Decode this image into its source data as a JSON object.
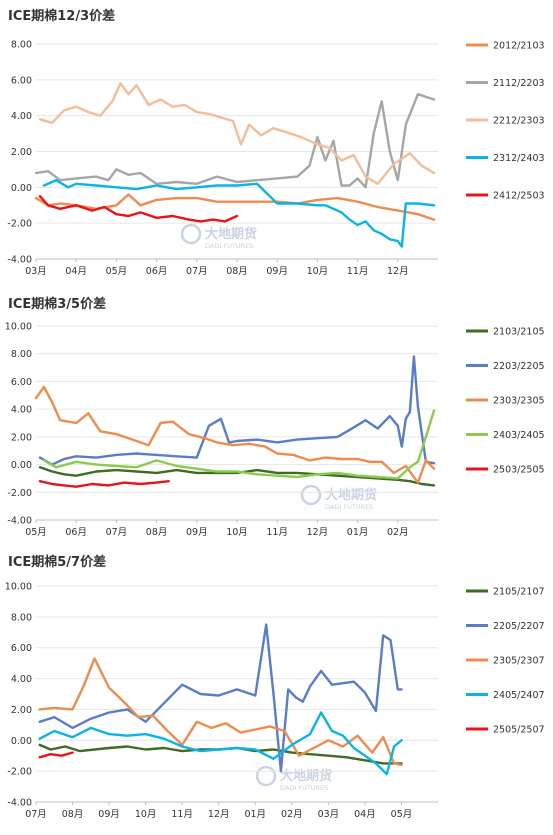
{
  "colors": {
    "light_orange": "#F2BE9A",
    "orange": "#ED8C4E",
    "gray": "#A6A6A6",
    "cyan": "#0AB4E6",
    "red": "#E8141B",
    "blue": "#5B7DC8",
    "dark_green": "#3F6B24",
    "light_green": "#8DCB50",
    "grid": "#E6E6E6",
    "axis": "#BFBFBF",
    "text": "#333333",
    "watermark": "#C9D3E3"
  },
  "watermark": {
    "cn": "大地期货",
    "en": "DADI FUTURES"
  },
  "chart_data": [
    {
      "type": "line",
      "title": "ICE期棉12/3价差",
      "ylim": [
        -4,
        8
      ],
      "yticks": [
        "8.00",
        "6.00",
        "4.00",
        "2.00",
        "0.00",
        "-2.00",
        "-4.00"
      ],
      "categories": [
        "03月",
        "04月",
        "05月",
        "06月",
        "07月",
        "08月",
        "09月",
        "10月",
        "11月",
        "12月"
      ],
      "legend_position": "right",
      "series": [
        {
          "name": "2012/2103",
          "color_key": "orange",
          "x": [
            0,
            0.3,
            0.6,
            1,
            1.5,
            2,
            2.3,
            2.6,
            3,
            3.5,
            4,
            4.5,
            5,
            5.5,
            6,
            6.5,
            7,
            7.5,
            8,
            8.5,
            9,
            9.5,
            9.9
          ],
          "y": [
            -0.6,
            -1.0,
            -0.9,
            -1.0,
            -1.2,
            -1.0,
            -0.4,
            -1.0,
            -0.7,
            -0.6,
            -0.6,
            -0.8,
            -0.8,
            -0.8,
            -0.8,
            -0.9,
            -0.7,
            -0.6,
            -0.8,
            -1.1,
            -1.3,
            -1.5,
            -1.8
          ]
        },
        {
          "name": "2112/2203",
          "color_key": "gray",
          "x": [
            0,
            0.3,
            0.6,
            1,
            1.5,
            1.8,
            2,
            2.3,
            2.6,
            3,
            3.5,
            4,
            4.5,
            5,
            5.5,
            6,
            6.5,
            6.8,
            7,
            7.2,
            7.4,
            7.6,
            7.8,
            8,
            8.2,
            8.4,
            8.6,
            8.8,
            9.0,
            9.2,
            9.5,
            9.9
          ],
          "y": [
            0.8,
            0.9,
            0.4,
            0.5,
            0.6,
            0.4,
            1.0,
            0.7,
            0.8,
            0.2,
            0.3,
            0.2,
            0.6,
            0.3,
            0.4,
            0.5,
            0.6,
            1.2,
            2.8,
            1.5,
            2.6,
            0.1,
            0.1,
            0.5,
            0.0,
            3.0,
            4.8,
            2.0,
            0.4,
            3.5,
            5.2,
            4.9
          ]
        },
        {
          "name": "2212/2303",
          "color_key": "light_orange",
          "x": [
            0.1,
            0.4,
            0.7,
            1,
            1.3,
            1.6,
            1.9,
            2.1,
            2.3,
            2.5,
            2.8,
            3.1,
            3.4,
            3.7,
            4,
            4.3,
            4.6,
            4.9,
            5.1,
            5.3,
            5.6,
            5.9,
            6.2,
            6.6,
            7,
            7.3,
            7.6,
            7.9,
            8.2,
            8.5,
            8.9,
            9.3,
            9.6,
            9.9
          ],
          "y": [
            3.8,
            3.6,
            4.3,
            4.5,
            4.2,
            4.0,
            4.8,
            5.8,
            5.2,
            5.7,
            4.6,
            4.9,
            4.5,
            4.6,
            4.2,
            4.1,
            3.9,
            3.7,
            2.4,
            3.5,
            2.9,
            3.3,
            3.1,
            2.8,
            2.4,
            2.2,
            1.5,
            1.8,
            0.6,
            0.2,
            1.3,
            1.9,
            1.2,
            0.8
          ]
        },
        {
          "name": "2312/2403",
          "color_key": "cyan",
          "x": [
            0.2,
            0.5,
            0.8,
            1,
            1.5,
            2,
            2.5,
            3,
            3.5,
            4,
            4.5,
            5,
            5.5,
            6,
            6.5,
            7,
            7.2,
            7.4,
            7.6,
            7.8,
            8.0,
            8.2,
            8.4,
            8.6,
            8.8,
            9.0,
            9.1,
            9.2,
            9.5,
            9.9
          ],
          "y": [
            0.1,
            0.4,
            0.0,
            0.2,
            0.1,
            0.0,
            -0.1,
            0.1,
            -0.1,
            0.0,
            0.1,
            0.1,
            0.2,
            -0.9,
            -0.9,
            -1.0,
            -1.0,
            -1.2,
            -1.4,
            -1.8,
            -2.1,
            -1.9,
            -2.4,
            -2.6,
            -2.9,
            -3.0,
            -3.3,
            -0.9,
            -0.9,
            -1.0
          ]
        },
        {
          "name": "2412/2503",
          "color_key": "red",
          "x": [
            0.1,
            0.3,
            0.6,
            1,
            1.4,
            1.7,
            2,
            2.3,
            2.6,
            3,
            3.4,
            3.8,
            4.1,
            4.4,
            4.7,
            5.0
          ],
          "y": [
            -0.5,
            -1.0,
            -1.2,
            -1.0,
            -1.3,
            -1.1,
            -1.5,
            -1.6,
            -1.4,
            -1.7,
            -1.6,
            -1.8,
            -1.9,
            -1.8,
            -1.9,
            -1.6
          ]
        }
      ]
    },
    {
      "type": "line",
      "title": "ICE期棉3/5价差",
      "ylim": [
        -4,
        10
      ],
      "yticks": [
        "10.00",
        "8.00",
        "6.00",
        "4.00",
        "2.00",
        "0.00",
        "-2.00",
        "-4.00"
      ],
      "categories": [
        "05月",
        "06月",
        "07月",
        "08月",
        "09月",
        "10月",
        "11月",
        "12月",
        "01月",
        "02月"
      ],
      "legend_position": "right",
      "series": [
        {
          "name": "2103/2105",
          "color_key": "dark_green",
          "x": [
            0.1,
            0.4,
            0.7,
            1,
            1.5,
            2,
            2.5,
            3,
            3.5,
            4,
            4.5,
            5,
            5.5,
            6,
            6.5,
            7,
            7.5,
            8,
            8.5,
            9,
            9.3,
            9.6,
            9.9
          ],
          "y": [
            -0.2,
            -0.5,
            -0.7,
            -0.8,
            -0.5,
            -0.4,
            -0.5,
            -0.6,
            -0.4,
            -0.6,
            -0.6,
            -0.6,
            -0.4,
            -0.6,
            -0.6,
            -0.7,
            -0.8,
            -0.9,
            -1.0,
            -1.1,
            -1.2,
            -1.4,
            -1.5
          ]
        },
        {
          "name": "2203/2205",
          "color_key": "blue",
          "x": [
            0.1,
            0.4,
            0.7,
            1,
            1.5,
            2,
            2.5,
            3,
            3.5,
            4,
            4.3,
            4.6,
            4.8,
            5.0,
            5.5,
            6,
            6.5,
            7,
            7.5,
            7.8,
            8.2,
            8.5,
            8.8,
            9.0,
            9.1,
            9.2,
            9.3,
            9.4,
            9.5,
            9.7,
            9.9
          ],
          "y": [
            0.5,
            0.0,
            0.4,
            0.6,
            0.5,
            0.7,
            0.8,
            0.7,
            0.6,
            0.5,
            2.8,
            3.3,
            1.6,
            1.7,
            1.8,
            1.6,
            1.8,
            1.9,
            2.0,
            2.5,
            3.2,
            2.6,
            3.5,
            2.8,
            1.3,
            3.3,
            3.8,
            7.8,
            4.2,
            0.2,
            0.1
          ]
        },
        {
          "name": "2303/2305",
          "color_key": "orange",
          "x": [
            0.0,
            0.2,
            0.4,
            0.6,
            1,
            1.3,
            1.6,
            2,
            2.4,
            2.8,
            3.1,
            3.4,
            3.8,
            4.2,
            4.5,
            4.9,
            5.3,
            5.7,
            6.0,
            6.4,
            6.8,
            7.2,
            7.6,
            8.0,
            8.3,
            8.6,
            8.9,
            9.2,
            9.5,
            9.7,
            9.9
          ],
          "y": [
            4.8,
            5.6,
            4.5,
            3.2,
            3.0,
            3.7,
            2.4,
            2.2,
            1.8,
            1.4,
            3.0,
            3.1,
            2.2,
            1.9,
            1.6,
            1.4,
            1.5,
            1.3,
            0.8,
            0.7,
            0.3,
            0.5,
            0.4,
            0.4,
            0.2,
            0.2,
            -0.6,
            -0.1,
            -1.3,
            0.3,
            -0.3
          ]
        },
        {
          "name": "2403/2405",
          "color_key": "light_green",
          "x": [
            0.2,
            0.5,
            1,
            1.5,
            2,
            2.5,
            3,
            3.5,
            4,
            4.5,
            5,
            5.5,
            6,
            6.5,
            7,
            7.5,
            8,
            8.5,
            9,
            9.3,
            9.5,
            9.7,
            9.9
          ],
          "y": [
            0.3,
            -0.2,
            0.2,
            0.0,
            -0.1,
            -0.2,
            0.3,
            -0.1,
            -0.3,
            -0.5,
            -0.5,
            -0.7,
            -0.8,
            -0.9,
            -0.7,
            -0.6,
            -0.8,
            -0.9,
            -1.0,
            -0.2,
            0.2,
            2.0,
            3.9
          ]
        },
        {
          "name": "2503/2505",
          "color_key": "red",
          "x": [
            0.1,
            0.4,
            0.7,
            1,
            1.4,
            1.8,
            2.2,
            2.6,
            3.0,
            3.3
          ],
          "y": [
            -1.2,
            -1.4,
            -1.5,
            -1.6,
            -1.4,
            -1.5,
            -1.3,
            -1.4,
            -1.3,
            -1.2
          ]
        }
      ]
    },
    {
      "type": "line",
      "title": "ICE期棉5/7价差",
      "ylim": [
        -4,
        10
      ],
      "yticks": [
        "10.00",
        "8.00",
        "6.00",
        "4.00",
        "2.00",
        "0.00",
        "-2.00",
        "-4.00"
      ],
      "categories": [
        "07月",
        "08月",
        "09月",
        "10月",
        "11月",
        "12月",
        "01月",
        "02月",
        "03月",
        "04月",
        "05月"
      ],
      "legend_position": "right",
      "series": [
        {
          "name": "2105/2107",
          "color_key": "dark_green",
          "x": [
            0.1,
            0.4,
            0.8,
            1.2,
            1.6,
            2,
            2.5,
            3,
            3.5,
            4,
            4.5,
            5,
            5.5,
            6,
            6.5,
            7,
            7.5,
            8,
            8.5,
            9,
            9.5,
            10
          ],
          "y": [
            -0.3,
            -0.6,
            -0.4,
            -0.7,
            -0.6,
            -0.5,
            -0.4,
            -0.6,
            -0.5,
            -0.7,
            -0.6,
            -0.6,
            -0.5,
            -0.7,
            -0.6,
            -0.8,
            -0.9,
            -1.0,
            -1.1,
            -1.3,
            -1.5,
            -1.5
          ]
        },
        {
          "name": "2205/2207",
          "color_key": "blue",
          "x": [
            0.1,
            0.5,
            1,
            1.5,
            2,
            2.5,
            3,
            3.5,
            4,
            4.5,
            5,
            5.5,
            6,
            6.3,
            6.5,
            6.7,
            6.9,
            7.1,
            7.3,
            7.5,
            7.8,
            8.1,
            8.4,
            8.7,
            9.0,
            9.3,
            9.5,
            9.7,
            9.9,
            10
          ],
          "y": [
            1.2,
            1.5,
            0.8,
            1.4,
            1.8,
            2.0,
            1.2,
            2.4,
            3.6,
            3.0,
            2.9,
            3.3,
            2.9,
            7.5,
            3.0,
            -2.0,
            3.3,
            2.8,
            2.5,
            3.5,
            4.5,
            3.6,
            3.7,
            3.8,
            3.1,
            1.9,
            6.8,
            6.5,
            3.3,
            3.3
          ]
        },
        {
          "name": "2305/2307",
          "color_key": "orange",
          "x": [
            0.1,
            0.5,
            1.0,
            1.3,
            1.6,
            2.0,
            2.4,
            2.8,
            3.2,
            3.6,
            4.0,
            4.4,
            4.8,
            5.2,
            5.6,
            6.0,
            6.4,
            6.8,
            7.2,
            7.6,
            8.0,
            8.4,
            8.8,
            9.2,
            9.5,
            9.8,
            10
          ],
          "y": [
            2.0,
            2.1,
            2.0,
            3.5,
            5.3,
            3.4,
            2.5,
            1.5,
            1.6,
            0.6,
            -0.3,
            1.2,
            0.8,
            1.1,
            0.5,
            0.7,
            0.9,
            0.6,
            -1.0,
            -0.5,
            0.0,
            -0.4,
            0.3,
            -0.8,
            0.2,
            -1.5,
            -1.6
          ]
        },
        {
          "name": "2405/2407",
          "color_key": "cyan",
          "x": [
            0.1,
            0.5,
            1,
            1.5,
            2,
            2.5,
            3,
            3.5,
            4,
            4.5,
            5,
            5.5,
            6,
            6.5,
            7,
            7.5,
            7.8,
            8.1,
            8.4,
            8.7,
            9.0,
            9.3,
            9.6,
            9.8,
            10
          ],
          "y": [
            0.1,
            0.6,
            0.2,
            0.8,
            0.4,
            0.3,
            0.4,
            0.1,
            -0.4,
            -0.7,
            -0.6,
            -0.5,
            -0.6,
            -1.2,
            -0.3,
            0.4,
            1.8,
            0.6,
            0.3,
            -0.5,
            -1.0,
            -1.5,
            -2.2,
            -0.4,
            0.0
          ]
        },
        {
          "name": "2505/2507",
          "color_key": "red",
          "x": [
            0.1,
            0.4,
            0.7,
            1.0
          ],
          "y": [
            -1.1,
            -0.9,
            -1.0,
            -0.8
          ]
        }
      ]
    }
  ]
}
